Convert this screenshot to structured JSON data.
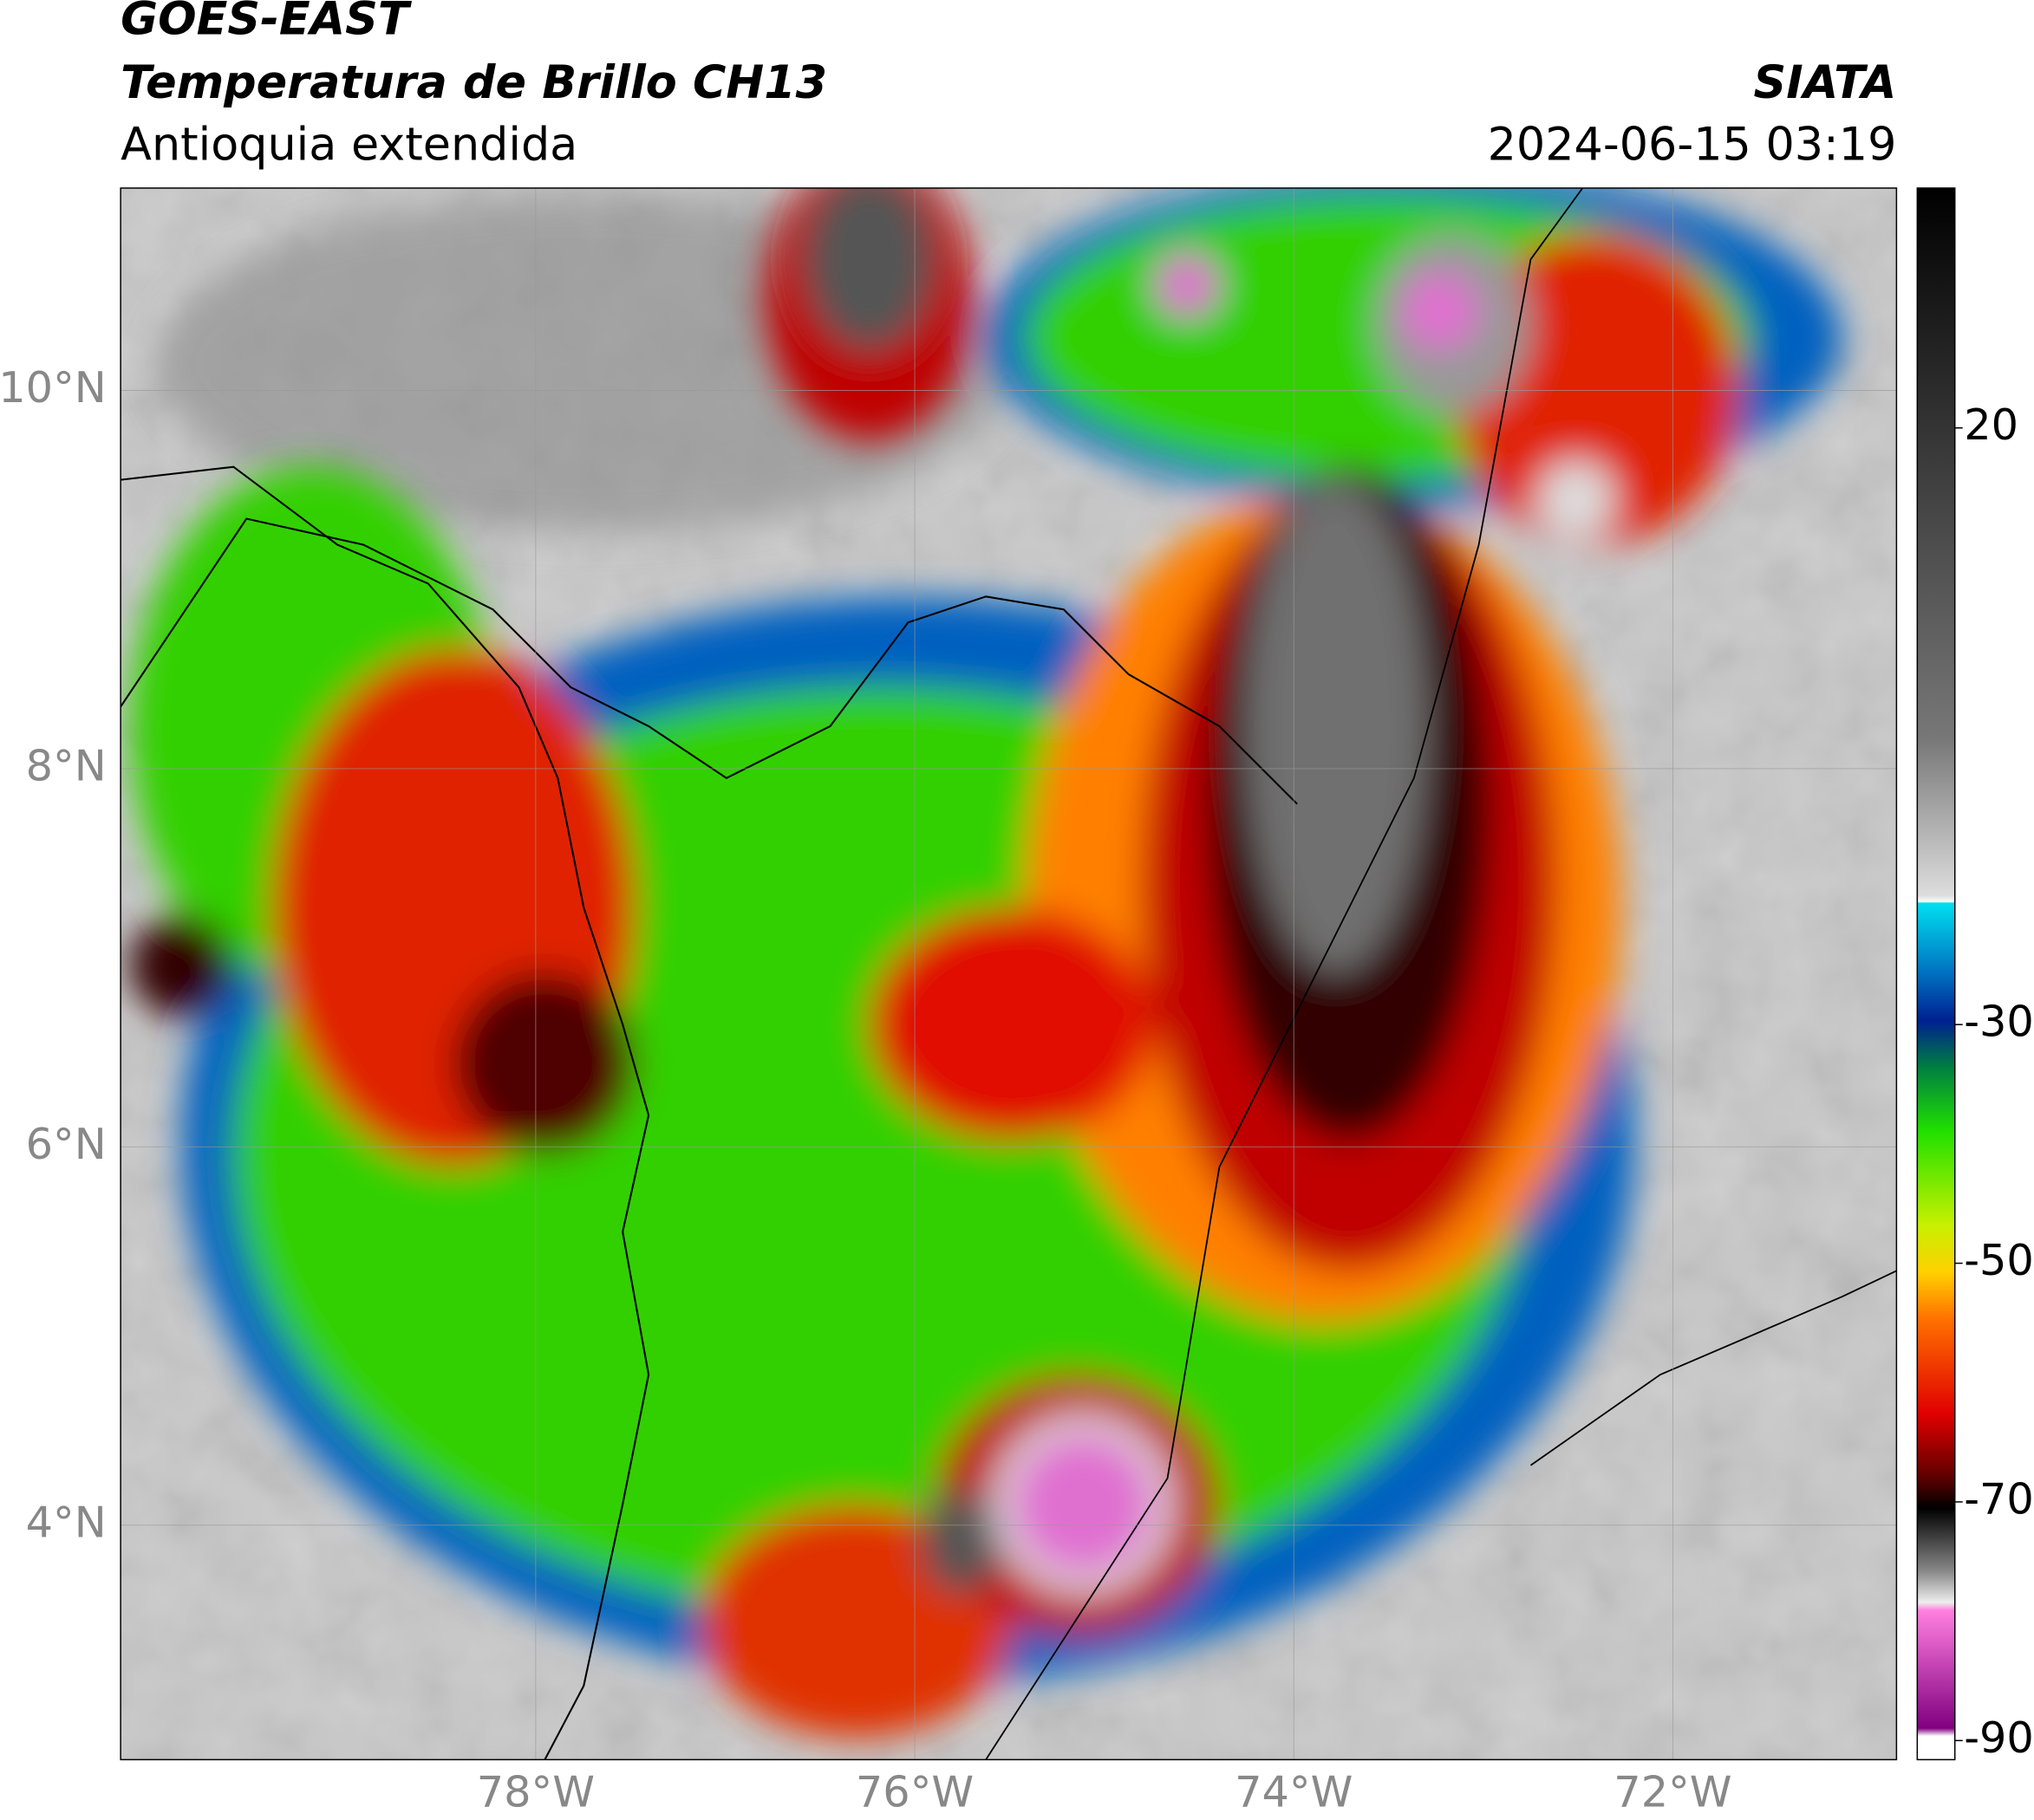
{
  "header": {
    "title": "GOES-EAST",
    "subtitle": "Temperatura de Brillo CH13",
    "region": "Antioquia extendida",
    "source": "SIATA",
    "timestamp": "2024-06-15 03:19"
  },
  "map": {
    "lon_lim": [
      -80.19,
      -70.82
    ],
    "lat_lim": [
      2.76,
      11.07
    ],
    "lon_ticks": [
      {
        "value": -78,
        "label": "78°W"
      },
      {
        "value": -76,
        "label": "76°W"
      },
      {
        "value": -74,
        "label": "74°W"
      },
      {
        "value": -72,
        "label": "72°W"
      }
    ],
    "lat_ticks": [
      {
        "value": 10,
        "label": "10°N"
      },
      {
        "value": 8,
        "label": "8°N"
      },
      {
        "value": 6,
        "label": "6°N"
      },
      {
        "value": 4,
        "label": "4°N"
      }
    ],
    "grid": true
  },
  "colorbar": {
    "lim": [
      -91.6,
      40.1
    ],
    "ticks": [
      20,
      -30,
      -50,
      -70,
      -90
    ]
  }
}
